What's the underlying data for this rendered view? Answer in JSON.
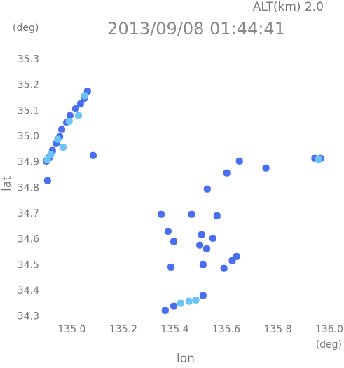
{
  "chart_data": {
    "type": "scatter",
    "title": "2013/09/08 01:44:41",
    "subtitle": "ALT(km) 2.0",
    "y_unit": "(deg)",
    "x_unit": "(deg)",
    "x_label": "lon",
    "y_label": "lat",
    "xlim": [
      134.89,
      136.0
    ],
    "ylim": [
      34.28,
      35.36
    ],
    "xticks": [
      {
        "value": 135.0,
        "label": "135.0"
      },
      135.2,
      135.4,
      135.6,
      135.8,
      {
        "value": 136.0,
        "label": "136.0"
      }
    ],
    "yticks": [
      34.3,
      34.4,
      34.5,
      34.6,
      34.7,
      34.8,
      34.9,
      {
        "value": 35.0,
        "label": "35.0"
      },
      35.1,
      35.2,
      35.3
    ],
    "series": [
      {
        "color": "#4a6ef0",
        "x": [
          134.912,
          134.925,
          134.939,
          134.953,
          134.961,
          134.98,
          134.993,
          135.015,
          135.034,
          135.048,
          135.061,
          134.901,
          134.906,
          135.083,
          135.944,
          135.966,
          135.651,
          135.602,
          135.526,
          135.754,
          135.347,
          135.466,
          135.564,
          135.374,
          135.396,
          135.497,
          135.524,
          135.51,
          135.64,
          135.623,
          135.591,
          135.385,
          135.504,
          135.548,
          135.363,
          135.396,
          135.51
        ],
        "values": [
          34.919,
          34.946,
          34.973,
          35.0,
          35.028,
          35.055,
          35.082,
          35.109,
          35.128,
          35.15,
          35.177,
          34.905,
          34.829,
          34.927,
          34.916,
          34.916,
          34.905,
          34.859,
          34.796,
          34.878,
          34.698,
          34.698,
          34.692,
          34.632,
          34.592,
          34.578,
          34.564,
          34.502,
          34.534,
          34.518,
          34.488,
          34.493,
          34.619,
          34.605,
          34.324,
          34.341,
          34.382
        ]
      },
      {
        "color": "#6cc4f4",
        "x": [
          134.918,
          134.945,
          134.966,
          134.99,
          135.026,
          135.05,
          134.905,
          135.423,
          135.455,
          135.482,
          135.958
        ],
        "values": [
          34.93,
          34.99,
          34.959,
          35.06,
          35.082,
          35.16,
          34.91,
          34.352,
          34.36,
          34.365,
          34.912
        ]
      }
    ]
  }
}
